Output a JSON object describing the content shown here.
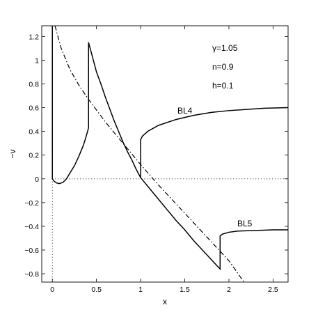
{
  "chart_data": {
    "type": "line",
    "title": "",
    "xlabel": "x",
    "ylabel": "−v",
    "xlim": [
      -0.12,
      2.67
    ],
    "ylim": [
      -0.87,
      1.29
    ],
    "xticks": [
      0,
      0.5,
      1,
      1.5,
      2,
      2.5
    ],
    "xtick_labels": [
      "0",
      "0.5",
      "1",
      "1.5",
      "2",
      "2.5"
    ],
    "yticks": [
      1.2,
      1,
      0.8,
      0.6,
      0.4,
      0.2,
      0,
      -0.2,
      -0.4,
      -0.6,
      -0.8
    ],
    "ytick_labels": [
      "1.2",
      "1",
      "0.8",
      "0.6",
      "0.4",
      "0.2",
      "0",
      "−0.2",
      "−0.4",
      "−0.6",
      "−0.8"
    ],
    "grid": false,
    "annotations": {
      "gamma": "γ=1.05",
      "n": "n=0.9",
      "h": "h=0.1",
      "bl4": "BL4",
      "bl5": "BL5"
    },
    "series": [
      {
        "style": "solid",
        "points": [
          [
            0.0,
            1.3
          ],
          [
            0.0,
            0.0
          ],
          [
            0.02,
            -0.02
          ],
          [
            0.05,
            -0.035
          ],
          [
            0.08,
            -0.04
          ],
          [
            0.12,
            -0.03
          ],
          [
            0.16,
            0.0
          ],
          [
            0.2,
            0.05
          ],
          [
            0.25,
            0.11
          ],
          [
            0.3,
            0.19
          ],
          [
            0.35,
            0.28
          ],
          [
            0.38,
            0.35
          ],
          [
            0.41,
            0.43
          ],
          [
            0.41,
            1.15
          ],
          [
            0.45,
            1.04
          ],
          [
            0.5,
            0.9
          ],
          [
            0.55,
            0.8
          ],
          [
            0.6,
            0.69
          ],
          [
            0.65,
            0.59
          ],
          [
            0.7,
            0.49
          ],
          [
            0.75,
            0.4
          ],
          [
            0.8,
            0.31
          ],
          [
            0.85,
            0.23
          ],
          [
            0.9,
            0.16
          ],
          [
            0.95,
            0.08
          ],
          [
            1.0,
            0.01
          ]
        ]
      },
      {
        "style": "solid",
        "points": [
          [
            1.0,
            0.01
          ],
          [
            1.0,
            0.33
          ],
          [
            1.02,
            0.36
          ],
          [
            1.08,
            0.4
          ],
          [
            1.2,
            0.45
          ],
          [
            1.4,
            0.5
          ],
          [
            1.6,
            0.535
          ],
          [
            1.8,
            0.56
          ],
          [
            2.0,
            0.575
          ],
          [
            2.2,
            0.585
          ],
          [
            2.4,
            0.595
          ],
          [
            2.67,
            0.6
          ]
        ]
      },
      {
        "style": "solid",
        "points": [
          [
            1.0,
            0.01
          ],
          [
            1.1,
            -0.08
          ],
          [
            1.2,
            -0.17
          ],
          [
            1.3,
            -0.26
          ],
          [
            1.4,
            -0.35
          ],
          [
            1.5,
            -0.43
          ],
          [
            1.6,
            -0.52
          ],
          [
            1.7,
            -0.6
          ],
          [
            1.8,
            -0.68
          ],
          [
            1.9,
            -0.76
          ],
          [
            1.9,
            -0.48
          ],
          [
            1.93,
            -0.465
          ],
          [
            2.0,
            -0.45
          ],
          [
            2.1,
            -0.44
          ],
          [
            2.3,
            -0.435
          ],
          [
            2.5,
            -0.43
          ],
          [
            2.67,
            -0.43
          ]
        ]
      },
      {
        "style": "dashdot",
        "points": [
          [
            0.03,
            1.29
          ],
          [
            0.1,
            1.1
          ],
          [
            0.2,
            0.92
          ],
          [
            0.3,
            0.79
          ],
          [
            0.4,
            0.68
          ],
          [
            0.5,
            0.58
          ],
          [
            0.6,
            0.48
          ],
          [
            0.7,
            0.39
          ],
          [
            0.8,
            0.3
          ],
          [
            0.9,
            0.21
          ],
          [
            1.0,
            0.12
          ],
          [
            1.2,
            -0.05
          ],
          [
            1.4,
            -0.21
          ],
          [
            1.6,
            -0.37
          ],
          [
            1.8,
            -0.53
          ],
          [
            2.0,
            -0.69
          ],
          [
            2.17,
            -0.87
          ]
        ]
      },
      {
        "style": "dotted",
        "points": [
          [
            0.0,
            0.0
          ],
          [
            2.67,
            0.0
          ]
        ]
      },
      {
        "style": "dotted",
        "points": [
          [
            0.0,
            0.0
          ],
          [
            0.0,
            -0.87
          ]
        ]
      }
    ]
  }
}
